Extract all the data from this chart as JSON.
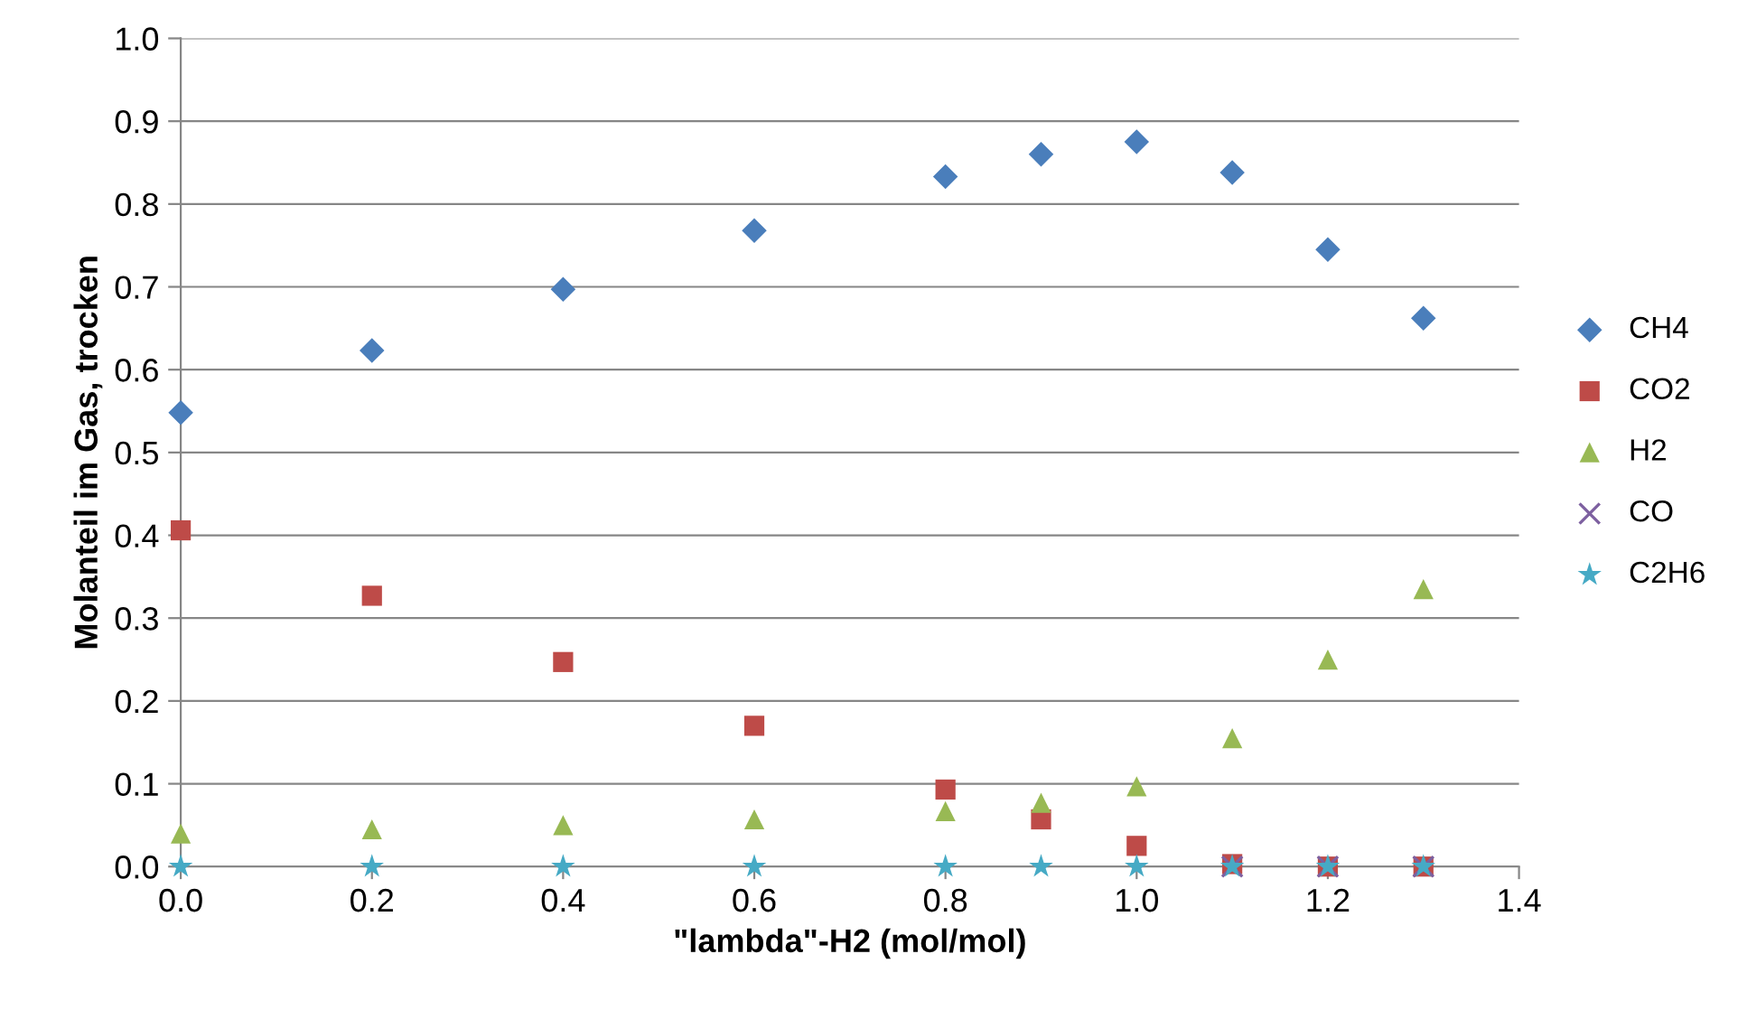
{
  "chart_data": {
    "type": "scatter",
    "xlabel": "\"lambda\"-H2 (mol/mol)",
    "ylabel": "Molanteil im Gas, trocken",
    "x": [
      0.0,
      0.2,
      0.4,
      0.6,
      0.8,
      0.9,
      1.0,
      1.1,
      1.2,
      1.3
    ],
    "series": [
      {
        "name": "CH4",
        "color": "#4a7ebb",
        "marker": "diamond",
        "values": [
          0.548,
          0.623,
          0.697,
          0.768,
          0.833,
          0.86,
          0.875,
          0.838,
          0.745,
          0.662
        ]
      },
      {
        "name": "CO2",
        "color": "#be4b48",
        "marker": "square",
        "values": [
          0.406,
          0.327,
          0.247,
          0.17,
          0.093,
          0.057,
          0.025,
          0.003,
          0.0,
          0.0
        ]
      },
      {
        "name": "H2",
        "color": "#98b954",
        "marker": "triangle",
        "values": [
          0.04,
          0.045,
          0.05,
          0.057,
          0.067,
          0.077,
          0.097,
          0.155,
          0.25,
          0.335
        ]
      },
      {
        "name": "CO",
        "color": "#7d60a0",
        "marker": "cross",
        "values": [
          null,
          null,
          null,
          null,
          null,
          null,
          null,
          0.0,
          0.0,
          0.0
        ]
      },
      {
        "name": "C2H6",
        "color": "#46aac5",
        "marker": "star",
        "values": [
          0.0,
          0.0,
          0.0,
          0.0,
          0.0,
          0.0,
          0.0,
          0.0,
          0.0,
          0.0
        ]
      }
    ],
    "xlim": [
      0.0,
      1.4
    ],
    "xticks": [
      {
        "value": 0.0,
        "label": "0.0"
      },
      {
        "value": 0.2,
        "label": "0.2"
      },
      {
        "value": 0.4,
        "label": "0.4"
      },
      {
        "value": 0.6,
        "label": "0.6"
      },
      {
        "value": 0.8,
        "label": "0.8"
      },
      {
        "value": 1.0,
        "label": "1.0"
      },
      {
        "value": 1.2,
        "label": "1.2"
      },
      {
        "value": 1.4,
        "label": "1.4"
      }
    ],
    "ylim": [
      0.0,
      1.0
    ],
    "yticks": [
      {
        "value": 0.0,
        "label": "0.0"
      },
      {
        "value": 0.1,
        "label": "0.1"
      },
      {
        "value": 0.2,
        "label": "0.2"
      },
      {
        "value": 0.3,
        "label": "0.3"
      },
      {
        "value": 0.4,
        "label": "0.4"
      },
      {
        "value": 0.5,
        "label": "0.5"
      },
      {
        "value": 0.6,
        "label": "0.6"
      },
      {
        "value": 0.7,
        "label": "0.7"
      },
      {
        "value": 0.8,
        "label": "0.8"
      },
      {
        "value": 0.9,
        "label": "0.9"
      },
      {
        "value": 1.0,
        "label": "1.0"
      }
    ],
    "grid": "y",
    "legend": "right"
  }
}
